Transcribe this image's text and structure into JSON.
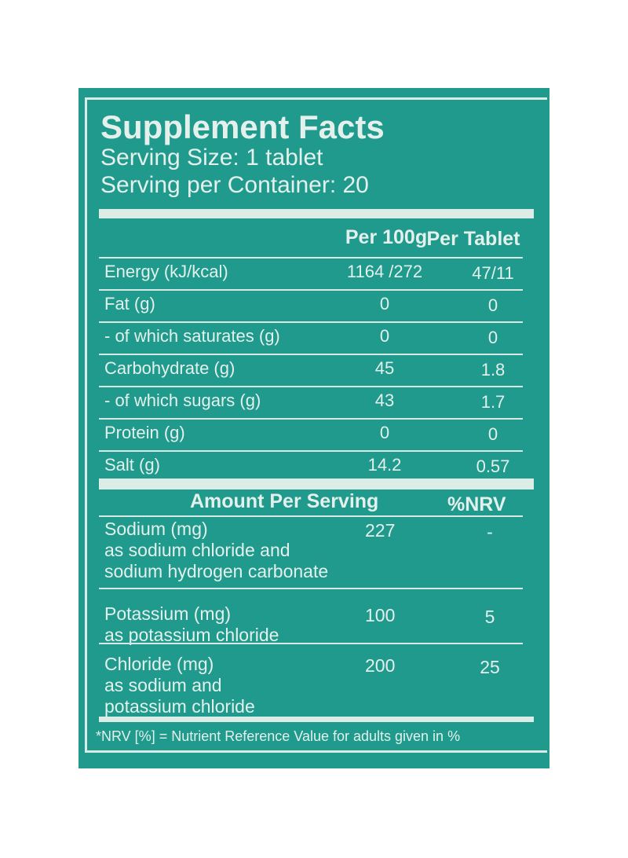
{
  "title": "Supplement Facts",
  "serving_size": "Serving Size: 1 tablet",
  "servings_per_container": "Serving per Container: 20",
  "nutrition": {
    "headers": [
      "Per 100g",
      "Per Tablet"
    ],
    "rows": [
      {
        "label": "Energy (kJ/kcal)",
        "per100g": "1164 /272",
        "per_tablet": "47/11"
      },
      {
        "label": "Fat (g)",
        "per100g": "0",
        "per_tablet": "0"
      },
      {
        "label": "- of which saturates (g)",
        "per100g": "0",
        "per_tablet": "0"
      },
      {
        "label": "Carbohydrate (g)",
        "per100g": "45",
        "per_tablet": "1.8"
      },
      {
        "label": "- of which sugars (g)",
        "per100g": "43",
        "per_tablet": "1.7"
      },
      {
        "label": "Protein (g)",
        "per100g": "0",
        "per_tablet": "0"
      },
      {
        "label": "Salt (g)",
        "per100g": "14.2",
        "per_tablet": "0.57"
      }
    ]
  },
  "minerals": {
    "headers": [
      "Amount Per Serving",
      "%NRV"
    ],
    "rows": [
      {
        "lines": [
          "Sodium (mg)",
          "as sodium chloride and",
          "sodium hydrogen carbonate"
        ],
        "amount": "227",
        "nrv": "-"
      },
      {
        "lines": [
          "Potassium (mg)",
          "as potassium chloride"
        ],
        "amount": "100",
        "nrv": "5"
      },
      {
        "lines": [
          "Chloride (mg)",
          "as sodium and",
          "potassium chloride"
        ],
        "amount": "200",
        "nrv": "25"
      }
    ]
  },
  "footnote": "*NRV [%] = Nutrient Reference Value for adults given in %",
  "colors": {
    "background": "#1f9a8c",
    "text": "#e3f0ec"
  }
}
